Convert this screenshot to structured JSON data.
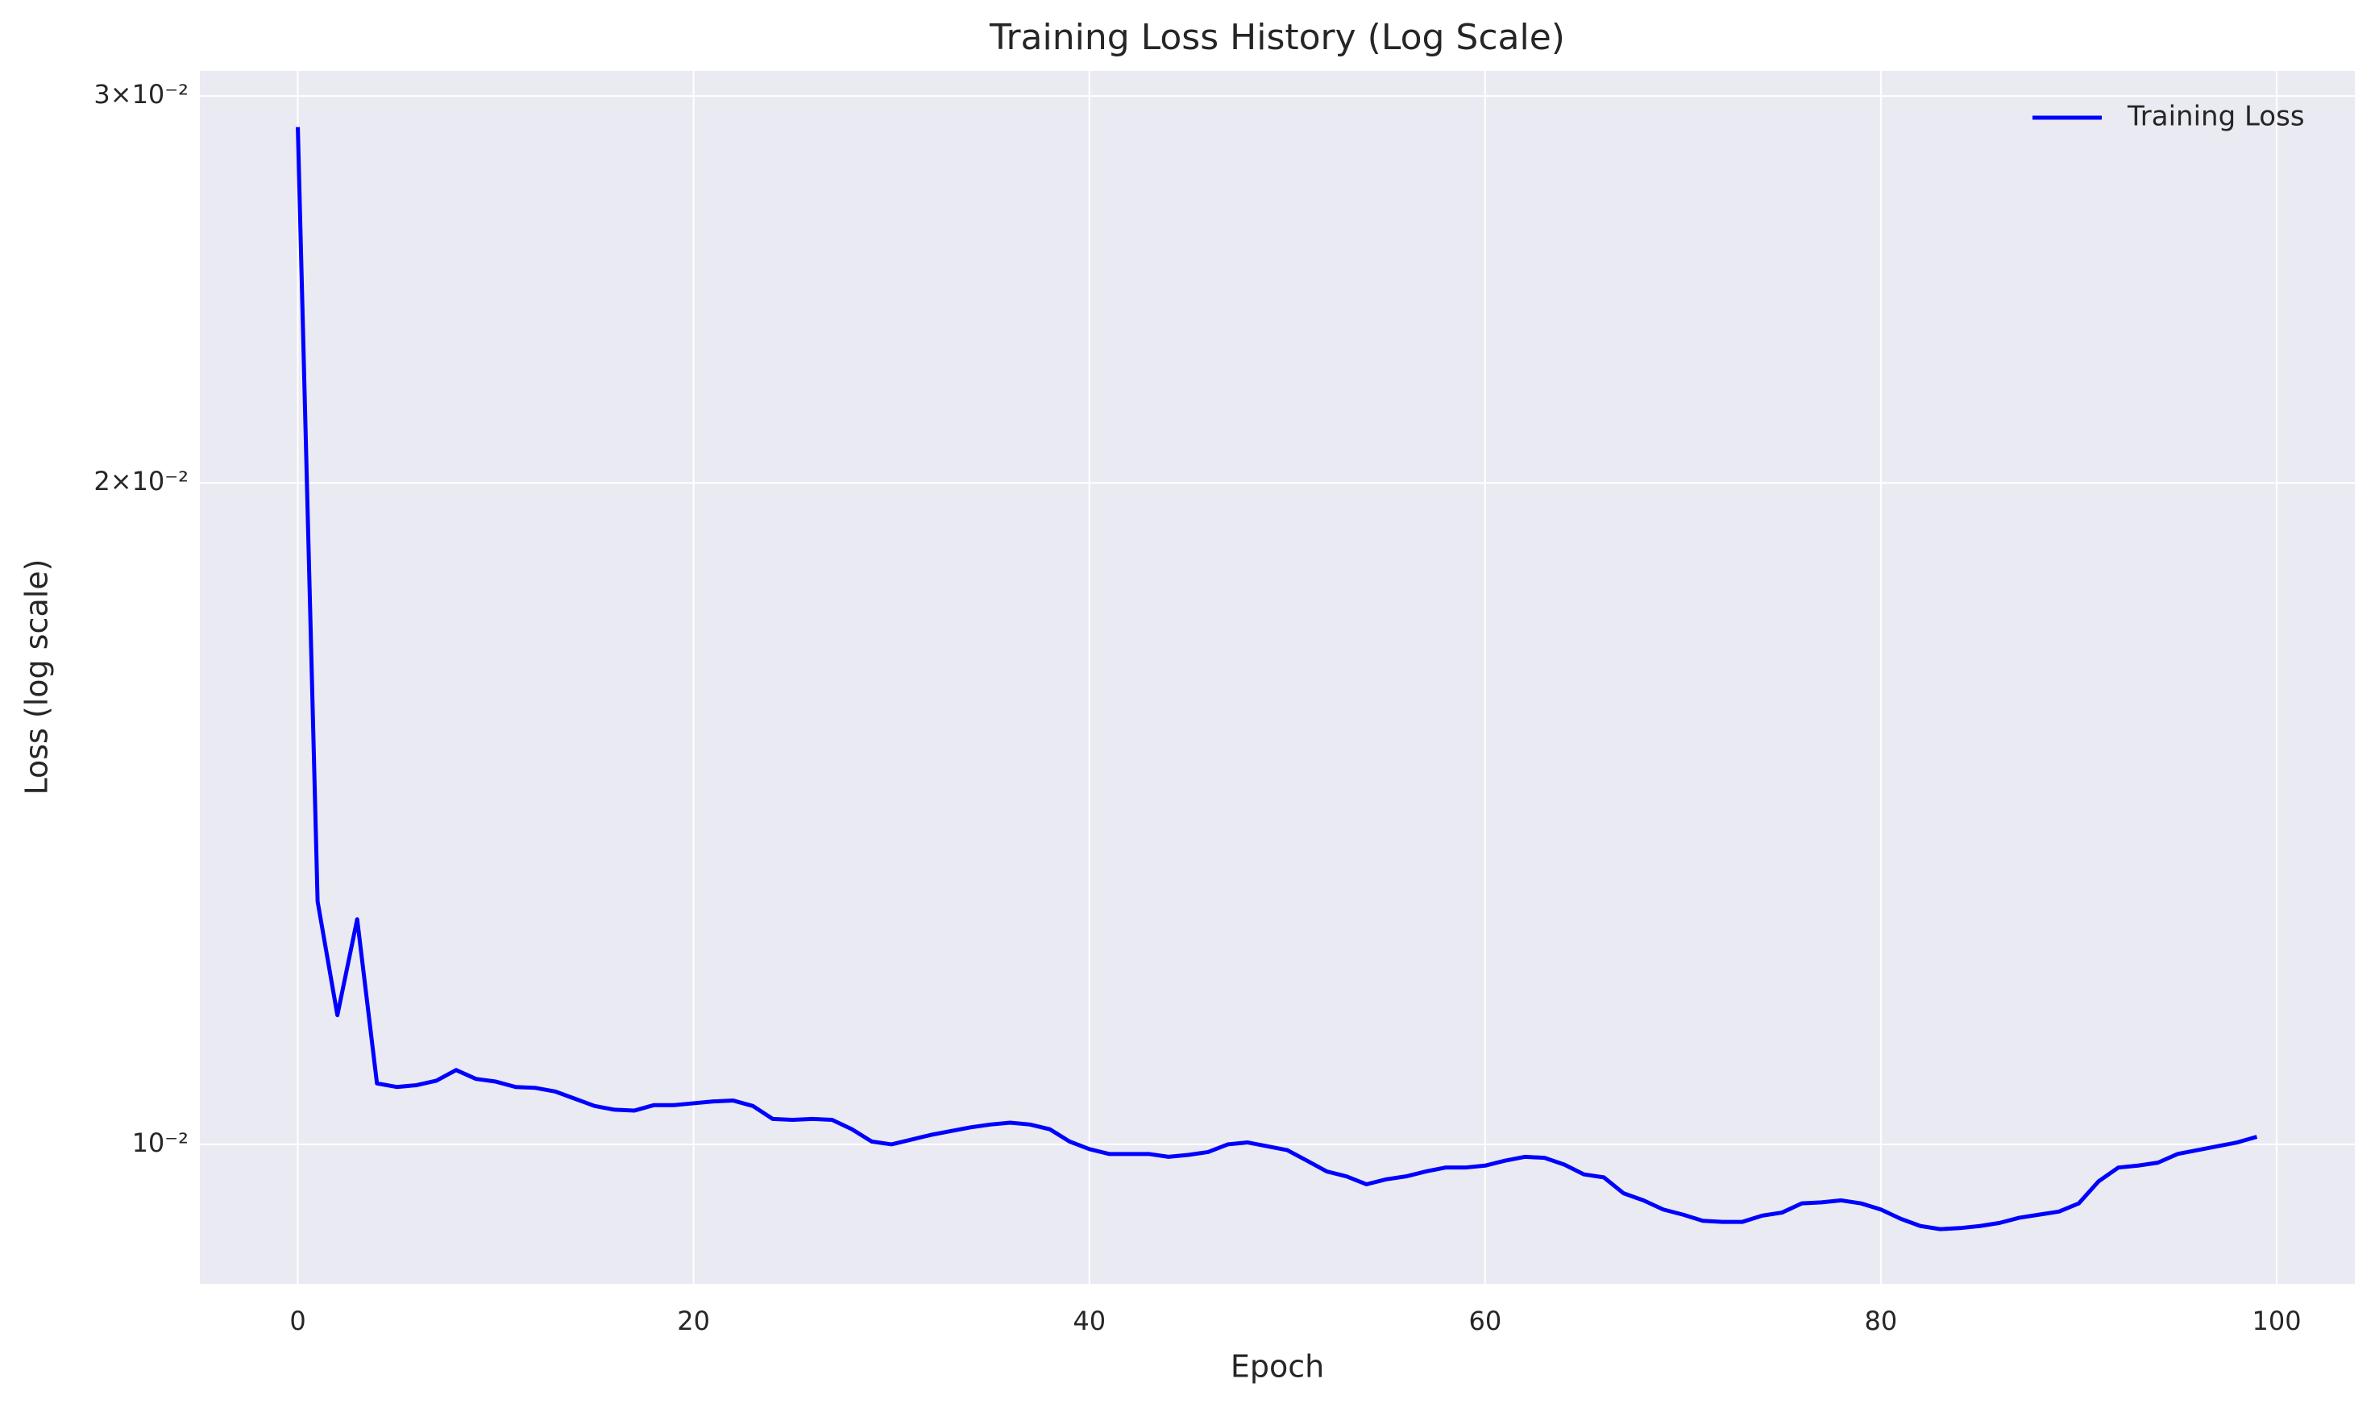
{
  "chart_data": {
    "type": "line",
    "title": "Training Loss History (Log Scale)",
    "xlabel": "Epoch",
    "ylabel": "Loss (log scale)",
    "x": [
      0,
      1,
      2,
      3,
      4,
      5,
      6,
      7,
      8,
      9,
      10,
      11,
      12,
      13,
      14,
      15,
      16,
      17,
      18,
      19,
      20,
      21,
      22,
      23,
      24,
      25,
      26,
      27,
      28,
      29,
      30,
      31,
      32,
      33,
      34,
      35,
      36,
      37,
      38,
      39,
      40,
      41,
      42,
      43,
      44,
      45,
      46,
      47,
      48,
      49,
      50,
      51,
      52,
      53,
      54,
      55,
      56,
      57,
      58,
      59,
      60,
      61,
      62,
      63,
      64,
      65,
      66,
      67,
      68,
      69,
      70,
      71,
      72,
      73,
      74,
      75,
      76,
      77,
      78,
      79,
      80,
      81,
      82,
      83,
      84,
      85,
      86,
      87,
      88,
      89,
      90,
      91,
      92,
      93,
      94,
      95,
      96,
      97,
      98,
      99
    ],
    "series": [
      {
        "name": "Training Loss",
        "color": "#0000ff",
        "values": [
          0.02904,
          0.0129,
          0.01145,
          0.01266,
          0.01066,
          0.01062,
          0.01064,
          0.01069,
          0.01081,
          0.01071,
          0.01068,
          0.01062,
          0.01061,
          0.01057,
          0.01049,
          0.01041,
          0.01037,
          0.01036,
          0.01042,
          0.01042,
          0.01044,
          0.01046,
          0.01047,
          0.01041,
          0.01027,
          0.01026,
          0.01027,
          0.01026,
          0.01016,
          0.01003,
          0.01,
          0.01005,
          0.0101,
          0.01014,
          0.01018,
          0.01021,
          0.01023,
          0.01021,
          0.01016,
          0.01003,
          0.00995,
          0.0099,
          0.0099,
          0.0099,
          0.00987,
          0.00989,
          0.00992,
          0.01,
          0.01002,
          0.00998,
          0.00994,
          0.00983,
          0.00972,
          0.00967,
          0.00959,
          0.00964,
          0.00967,
          0.00972,
          0.00976,
          0.00976,
          0.00978,
          0.00983,
          0.00987,
          0.00986,
          0.00979,
          0.00969,
          0.00966,
          0.0095,
          0.00943,
          0.00934,
          0.00929,
          0.00923,
          0.00922,
          0.00922,
          0.00928,
          0.00931,
          0.0094,
          0.00941,
          0.00943,
          0.0094,
          0.00934,
          0.00925,
          0.00918,
          0.00915,
          0.00916,
          0.00918,
          0.00921,
          0.00926,
          0.00929,
          0.00932,
          0.0094,
          0.00962,
          0.00976,
          0.00978,
          0.00981,
          0.0099,
          0.00994,
          0.00998,
          0.01002,
          0.01008
        ]
      }
    ],
    "xlim": [
      -4.95,
      103.95
    ],
    "xticks": [
      0,
      20,
      40,
      60,
      80,
      100
    ],
    "ylim": [
      0.00864,
      0.0308
    ],
    "yscale": "log",
    "yticks": [
      {
        "value": 0.01,
        "label": "10⁻²"
      },
      {
        "value": 0.02,
        "label": "2×10⁻²"
      },
      {
        "value": 0.03,
        "label": "3×10⁻²"
      }
    ],
    "grid": true,
    "legend_loc": "upper right"
  }
}
